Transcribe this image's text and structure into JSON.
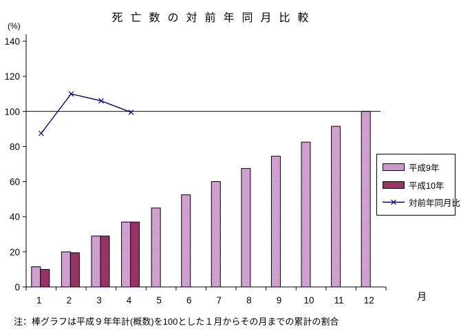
{
  "title": "死亡数の対前年同月比較",
  "y_axis_unit": "(%)",
  "x_axis_unit": "月",
  "note": "注：棒グラフは平成９年年計(概数)を100とした１月からその月までの累計の割合",
  "legend": {
    "position": "right",
    "items": [
      {
        "label": "平成9年",
        "type": "bar",
        "color": "#CC99CC"
      },
      {
        "label": "平成10年",
        "type": "bar",
        "color": "#993366"
      },
      {
        "label": "対前年同月比",
        "type": "line",
        "color": "#000080",
        "marker": "x"
      }
    ]
  },
  "colors": {
    "bar_heisei9": "#CC99CC",
    "bar_heisei9_dot": "#DBB3DB",
    "bar_heisei10": "#993366",
    "line_ratio": "#000080",
    "axis": "#000000",
    "background": "#FFFFFF"
  },
  "chart_data": {
    "type": "bar",
    "subtype": "bar+line combo",
    "title": "死亡数の対前年同月比較",
    "xlabel": "月",
    "ylabel": "(%)",
    "categories": [
      "1",
      "2",
      "3",
      "4",
      "5",
      "6",
      "7",
      "8",
      "9",
      "10",
      "11",
      "12"
    ],
    "series": [
      {
        "name": "平成9年",
        "type": "bar",
        "color": "#CC99CC",
        "values": [
          11.5,
          20,
          29,
          37,
          45,
          52.5,
          60,
          67.5,
          74.5,
          82.5,
          91.5,
          100
        ]
      },
      {
        "name": "平成10年",
        "type": "bar",
        "color": "#993366",
        "values": [
          10,
          19.5,
          29,
          37,
          null,
          null,
          null,
          null,
          null,
          null,
          null,
          null
        ]
      },
      {
        "name": "対前年同月比",
        "type": "line",
        "color": "#000080",
        "marker": "x",
        "values": [
          87.5,
          110,
          106,
          99.5,
          null,
          null,
          null,
          null,
          null,
          null,
          null,
          null
        ]
      }
    ],
    "ylim": [
      0,
      140
    ],
    "yticks": [
      0,
      20,
      40,
      60,
      80,
      100,
      120,
      140
    ],
    "reference_line": 100,
    "grid": false,
    "legend_position": "right"
  }
}
